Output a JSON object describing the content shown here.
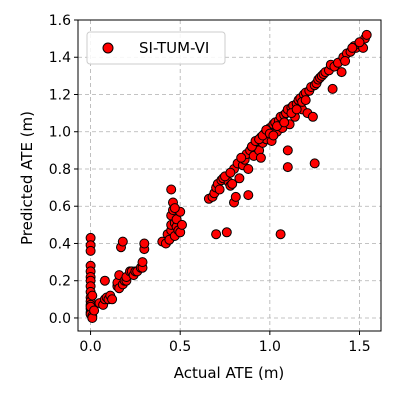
{
  "chart_data": {
    "type": "scatter",
    "xlabel": "Actual ATE (m)",
    "ylabel": "Predicted ATE (m)",
    "xlim": [
      -0.07,
      1.62
    ],
    "ylim": [
      -0.07,
      1.6
    ],
    "xticks": [
      0.0,
      0.5,
      1.0,
      1.5
    ],
    "yticks": [
      0.0,
      0.2,
      0.4,
      0.6,
      0.8,
      1.0,
      1.2,
      1.4,
      1.6
    ],
    "xtick_labels": [
      "0.0",
      "0.5",
      "1.0",
      "1.5"
    ],
    "ytick_labels": [
      "0.0",
      "0.2",
      "0.4",
      "0.6",
      "0.8",
      "1.0",
      "1.2",
      "1.4",
      "1.6"
    ],
    "grid": true,
    "legend_position": "top-left",
    "series": [
      {
        "name": "SI-TUM-VI",
        "color": "#ff0000",
        "edge_color": "#000000",
        "points": [
          [
            0.0,
            0.43
          ],
          [
            0.0,
            0.39
          ],
          [
            0.0,
            0.36
          ],
          [
            0.0,
            0.28
          ],
          [
            0.0,
            0.25
          ],
          [
            0.0,
            0.22
          ],
          [
            0.0,
            0.2
          ],
          [
            0.0,
            0.17
          ],
          [
            0.0,
            0.14
          ],
          [
            0.0,
            0.11
          ],
          [
            0.0,
            0.09
          ],
          [
            0.0,
            0.07
          ],
          [
            0.0,
            0.05
          ],
          [
            0.0,
            0.03
          ],
          [
            0.0,
            0.02
          ],
          [
            0.01,
            0.01
          ],
          [
            0.01,
            0.0
          ],
          [
            0.0,
            0.06
          ],
          [
            0.01,
            0.12
          ],
          [
            0.02,
            0.04
          ],
          [
            0.05,
            0.08
          ],
          [
            0.07,
            0.07
          ],
          [
            0.08,
            0.1
          ],
          [
            0.09,
            0.11
          ],
          [
            0.08,
            0.2
          ],
          [
            0.1,
            0.1
          ],
          [
            0.11,
            0.12
          ],
          [
            0.12,
            0.1
          ],
          [
            0.15,
            0.17
          ],
          [
            0.15,
            0.19
          ],
          [
            0.16,
            0.23
          ],
          [
            0.16,
            0.16
          ],
          [
            0.17,
            0.38
          ],
          [
            0.18,
            0.41
          ],
          [
            0.18,
            0.18
          ],
          [
            0.19,
            0.2
          ],
          [
            0.2,
            0.2
          ],
          [
            0.2,
            0.22
          ],
          [
            0.22,
            0.25
          ],
          [
            0.23,
            0.25
          ],
          [
            0.24,
            0.23
          ],
          [
            0.25,
            0.25
          ],
          [
            0.26,
            0.25
          ],
          [
            0.28,
            0.27
          ],
          [
            0.29,
            0.27
          ],
          [
            0.29,
            0.3
          ],
          [
            0.3,
            0.37
          ],
          [
            0.3,
            0.4
          ],
          [
            0.4,
            0.41
          ],
          [
            0.42,
            0.4
          ],
          [
            0.43,
            0.45
          ],
          [
            0.44,
            0.42
          ],
          [
            0.45,
            0.47
          ],
          [
            0.45,
            0.5
          ],
          [
            0.45,
            0.55
          ],
          [
            0.46,
            0.58
          ],
          [
            0.46,
            0.62
          ],
          [
            0.45,
            0.69
          ],
          [
            0.47,
            0.44
          ],
          [
            0.47,
            0.51
          ],
          [
            0.48,
            0.49
          ],
          [
            0.48,
            0.53
          ],
          [
            0.49,
            0.47
          ],
          [
            0.5,
            0.46
          ],
          [
            0.5,
            0.57
          ],
          [
            0.51,
            0.5
          ],
          [
            0.47,
            0.59
          ],
          [
            0.66,
            0.64
          ],
          [
            0.68,
            0.65
          ],
          [
            0.69,
            0.67
          ],
          [
            0.7,
            0.7
          ],
          [
            0.7,
            0.45
          ],
          [
            0.71,
            0.72
          ],
          [
            0.72,
            0.69
          ],
          [
            0.73,
            0.74
          ],
          [
            0.74,
            0.75
          ],
          [
            0.76,
            0.46
          ],
          [
            0.77,
            0.73
          ],
          [
            0.78,
            0.71
          ],
          [
            0.79,
            0.72
          ],
          [
            0.8,
            0.8
          ],
          [
            0.8,
            0.62
          ],
          [
            0.81,
            0.65
          ],
          [
            0.82,
            0.83
          ],
          [
            0.83,
            0.75
          ],
          [
            0.85,
            0.82
          ],
          [
            0.86,
            0.85
          ],
          [
            0.87,
            0.88
          ],
          [
            0.88,
            0.8
          ],
          [
            0.88,
            0.66
          ],
          [
            0.89,
            0.9
          ],
          [
            0.9,
            0.92
          ],
          [
            0.91,
            0.87
          ],
          [
            0.92,
            0.93
          ],
          [
            0.93,
            0.95
          ],
          [
            0.94,
            0.9
          ],
          [
            0.95,
            0.97
          ],
          [
            0.95,
            0.86
          ],
          [
            0.96,
            0.94
          ],
          [
            0.97,
            0.99
          ],
          [
            0.98,
            0.96
          ],
          [
            0.99,
            1.0
          ],
          [
            1.0,
            1.02
          ],
          [
            1.01,
            0.95
          ],
          [
            1.02,
            1.04
          ],
          [
            1.03,
            1.05
          ],
          [
            1.04,
            1.0
          ],
          [
            1.05,
            1.06
          ],
          [
            1.06,
            1.08
          ],
          [
            1.06,
            0.45
          ],
          [
            1.07,
            1.02
          ],
          [
            1.08,
            1.09
          ],
          [
            1.09,
            1.1
          ],
          [
            1.1,
            1.12
          ],
          [
            1.1,
            0.9
          ],
          [
            1.1,
            0.81
          ],
          [
            1.11,
            1.04
          ],
          [
            1.12,
            1.13
          ],
          [
            1.13,
            1.14
          ],
          [
            1.14,
            1.08
          ],
          [
            1.15,
            1.15
          ],
          [
            1.16,
            1.17
          ],
          [
            1.17,
            1.18
          ],
          [
            1.18,
            1.12
          ],
          [
            1.19,
            1.2
          ],
          [
            1.2,
            1.21
          ],
          [
            1.21,
            1.1
          ],
          [
            1.22,
            1.22
          ],
          [
            1.23,
            1.24
          ],
          [
            1.24,
            1.08
          ],
          [
            1.25,
            1.25
          ],
          [
            1.25,
            0.83
          ],
          [
            1.26,
            1.26
          ],
          [
            1.27,
            1.28
          ],
          [
            1.28,
            1.29
          ],
          [
            1.29,
            1.3
          ],
          [
            1.3,
            1.31
          ],
          [
            1.31,
            1.32
          ],
          [
            1.33,
            1.33
          ],
          [
            1.34,
            1.36
          ],
          [
            1.35,
            1.23
          ],
          [
            1.36,
            1.35
          ],
          [
            1.38,
            1.37
          ],
          [
            1.4,
            1.32
          ],
          [
            1.41,
            1.4
          ],
          [
            1.43,
            1.42
          ],
          [
            1.45,
            1.43
          ],
          [
            1.47,
            1.46
          ],
          [
            1.48,
            1.45
          ],
          [
            1.5,
            1.47
          ],
          [
            1.52,
            1.45
          ],
          [
            1.53,
            1.5
          ],
          [
            1.54,
            1.52
          ],
          [
            1.5,
            1.48
          ],
          [
            1.46,
            1.45
          ],
          [
            1.42,
            1.38
          ],
          [
            0.9,
            0.92
          ],
          [
            0.92,
            0.95
          ],
          [
            0.94,
            0.96
          ],
          [
            0.96,
            0.98
          ],
          [
            0.98,
            1.01
          ],
          [
            1.0,
            0.99
          ],
          [
            1.02,
            0.98
          ],
          [
            1.04,
            1.03
          ],
          [
            1.08,
            1.05
          ],
          [
            1.12,
            1.1
          ],
          [
            1.15,
            1.12
          ],
          [
            1.18,
            1.16
          ],
          [
            1.2,
            1.17
          ],
          [
            0.75,
            0.76
          ],
          [
            0.78,
            0.78
          ],
          [
            0.84,
            0.86
          ]
        ]
      }
    ]
  }
}
